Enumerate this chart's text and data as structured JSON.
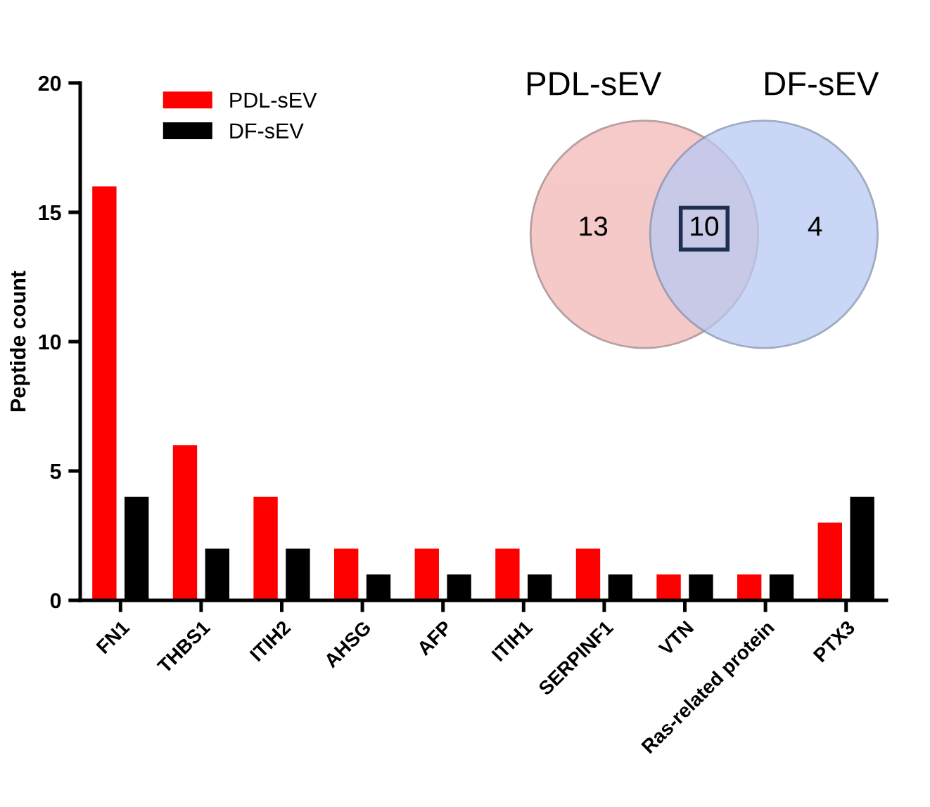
{
  "chart_data": {
    "type": "bar",
    "ylabel": "Peptide count",
    "categories": [
      "FN1",
      "THBS1",
      "ITIH2",
      "AHSG",
      "AFP",
      "ITIH1",
      "SERPINF1",
      "VTN",
      "Ras-related protein",
      "PTX3"
    ],
    "series": [
      {
        "name": "PDL-sEV",
        "color": "#ff0000",
        "values": [
          16,
          6,
          4,
          2,
          2,
          2,
          2,
          1,
          1,
          3
        ]
      },
      {
        "name": "DF-sEV",
        "color": "#000000",
        "values": [
          4,
          2,
          2,
          1,
          1,
          1,
          1,
          1,
          1,
          4
        ]
      }
    ],
    "ylim": [
      0,
      20
    ],
    "yticks": [
      0,
      5,
      10,
      15,
      20
    ],
    "legend": "top left",
    "grid": false,
    "annotations": [
      "PDL-sEV",
      "DF-sEV",
      "13",
      "10",
      "4"
    ]
  }
}
